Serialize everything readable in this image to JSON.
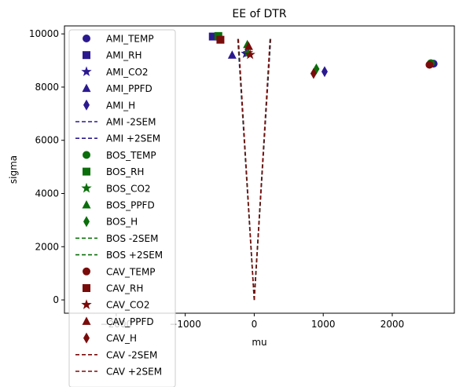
{
  "chart_data": {
    "type": "scatter",
    "title": "EE of DTR",
    "xlabel": "mu",
    "ylabel": "sigma",
    "xlim": [
      -2750,
      2900
    ],
    "ylim": [
      -500,
      10300
    ],
    "xticks": [
      -2000,
      -1000,
      0,
      1000,
      2000
    ],
    "xtick_labels": [
      "-2000",
      "-1000",
      "0",
      "1000",
      "2000"
    ],
    "yticks": [
      0,
      2000,
      4000,
      6000,
      8000,
      10000
    ],
    "ytick_labels": [
      "0",
      "2000",
      "4000",
      "6000",
      "8000",
      "10000"
    ],
    "legend_position": "top-left, overflowing plot area",
    "grid": false,
    "colors": {
      "AMI": "#2b1a8f",
      "BOS": "#0a6e0a",
      "CAV": "#7a0b0b"
    },
    "series": [
      {
        "name": "AMI_TEMP",
        "group": "AMI",
        "marker": "circle",
        "x": 2600,
        "y": 8880
      },
      {
        "name": "AMI_RH",
        "group": "AMI",
        "marker": "square",
        "x": -600,
        "y": 9900
      },
      {
        "name": "AMI_CO2",
        "group": "AMI",
        "marker": "star",
        "x": -120,
        "y": 9260
      },
      {
        "name": "AMI_PPFD",
        "group": "AMI",
        "marker": "triangle",
        "x": -320,
        "y": 9200
      },
      {
        "name": "AMI_H",
        "group": "AMI",
        "marker": "diamond",
        "x": 1020,
        "y": 8580
      },
      {
        "name": "AMI -2SEM",
        "group": "AMI",
        "marker": "line",
        "x": [
          0,
          -240
        ],
        "y": [
          0,
          9880
        ]
      },
      {
        "name": "AMI +2SEM",
        "group": "AMI",
        "marker": "line",
        "x": [
          0,
          240
        ],
        "y": [
          0,
          9880
        ]
      },
      {
        "name": "BOS_TEMP",
        "group": "BOS",
        "marker": "circle",
        "x": 2560,
        "y": 8900
      },
      {
        "name": "BOS_RH",
        "group": "BOS",
        "marker": "square",
        "x": -520,
        "y": 9920
      },
      {
        "name": "BOS_CO2",
        "group": "BOS",
        "marker": "star",
        "x": -90,
        "y": 9290
      },
      {
        "name": "BOS_PPFD",
        "group": "BOS",
        "marker": "triangle",
        "x": -100,
        "y": 9600
      },
      {
        "name": "BOS_H",
        "group": "BOS",
        "marker": "diamond",
        "x": 900,
        "y": 8680
      },
      {
        "name": "BOS -2SEM",
        "group": "BOS",
        "marker": "line",
        "x": [
          0,
          -235
        ],
        "y": [
          0,
          9850
        ]
      },
      {
        "name": "BOS +2SEM",
        "group": "BOS",
        "marker": "line",
        "x": [
          0,
          235
        ],
        "y": [
          0,
          9850
        ]
      },
      {
        "name": "CAV_TEMP",
        "group": "CAV",
        "marker": "circle",
        "x": 2540,
        "y": 8840
      },
      {
        "name": "CAV_RH",
        "group": "CAV",
        "marker": "square",
        "x": -490,
        "y": 9780
      },
      {
        "name": "CAV_CO2",
        "group": "CAV",
        "marker": "star",
        "x": -60,
        "y": 9220
      },
      {
        "name": "CAV_PPFD",
        "group": "CAV",
        "marker": "triangle",
        "x": -80,
        "y": 9530
      },
      {
        "name": "CAV_H",
        "group": "CAV",
        "marker": "diamond",
        "x": 860,
        "y": 8510
      },
      {
        "name": "CAV -2SEM",
        "group": "CAV",
        "marker": "line",
        "x": [
          0,
          -230
        ],
        "y": [
          0,
          9820
        ]
      },
      {
        "name": "CAV +2SEM",
        "group": "CAV",
        "marker": "line",
        "x": [
          0,
          230
        ],
        "y": [
          0,
          9820
        ]
      }
    ]
  }
}
